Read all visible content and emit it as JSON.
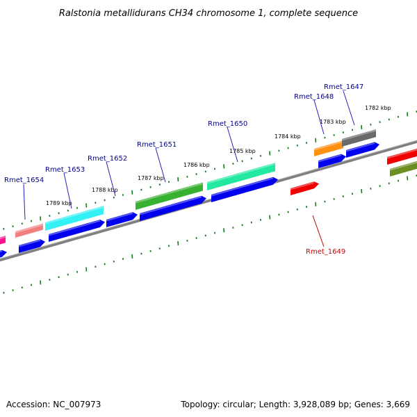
{
  "title": "Ralstonia metallidurans CH34 chromosome 1, complete sequence",
  "footer": {
    "accession": "Accession: NC_007973",
    "summary": "Topology: circular; Length: 3,928,089 bp; Genes: 3,669"
  },
  "kbp_labels": [
    "1782 kbp",
    "1783 kbp",
    "1784 kbp",
    "1785 kbp",
    "1786 kbp",
    "1787 kbp",
    "1788 kbp",
    "1789 kbp"
  ],
  "gene_labels": [
    {
      "text": "Rmet_1647",
      "color": "#00008b"
    },
    {
      "text": "Rmet_1648",
      "color": "#00008b"
    },
    {
      "text": "Rmet_1649",
      "color": "#cc0000"
    },
    {
      "text": "Rmet_1650",
      "color": "#00008b"
    },
    {
      "text": "Rmet_1651",
      "color": "#00008b"
    },
    {
      "text": "Rmet_1652",
      "color": "#00008b"
    },
    {
      "text": "Rmet_1653",
      "color": "#00008b"
    },
    {
      "text": "Rmet_1654",
      "color": "#00008b"
    }
  ],
  "colors": {
    "backbone": "#808080",
    "tick": "#1a7a1a",
    "cds": "#0000ee",
    "cyan": "#33f0f5",
    "green": "#38b030",
    "mint": "#22e8a0",
    "orange": "#ff9010",
    "gray": "#6a6a6a",
    "red": "#ee0000",
    "salmon": "#f08080",
    "magenta": "#ff1090",
    "olive": "#6b8e23"
  }
}
